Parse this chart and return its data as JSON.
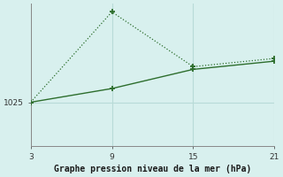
{
  "title": "Graphe pression niveau de la mer (hPa)",
  "bg_color": "#d8f0ee",
  "grid_color": "#b8dbd8",
  "line_color": "#2d6e2d",
  "x_ticks": [
    3,
    9,
    15,
    21
  ],
  "xlim": [
    3,
    21
  ],
  "ylim": [
    1017,
    1043
  ],
  "yticks": [
    1025
  ],
  "line1_x": [
    3,
    9,
    15,
    21
  ],
  "line1_y": [
    1025.0,
    1027.5,
    1031.0,
    1032.5
  ],
  "line2_x": [
    3,
    9,
    15,
    21
  ],
  "line2_y": [
    1025.0,
    1041.5,
    1031.5,
    1033.0
  ]
}
